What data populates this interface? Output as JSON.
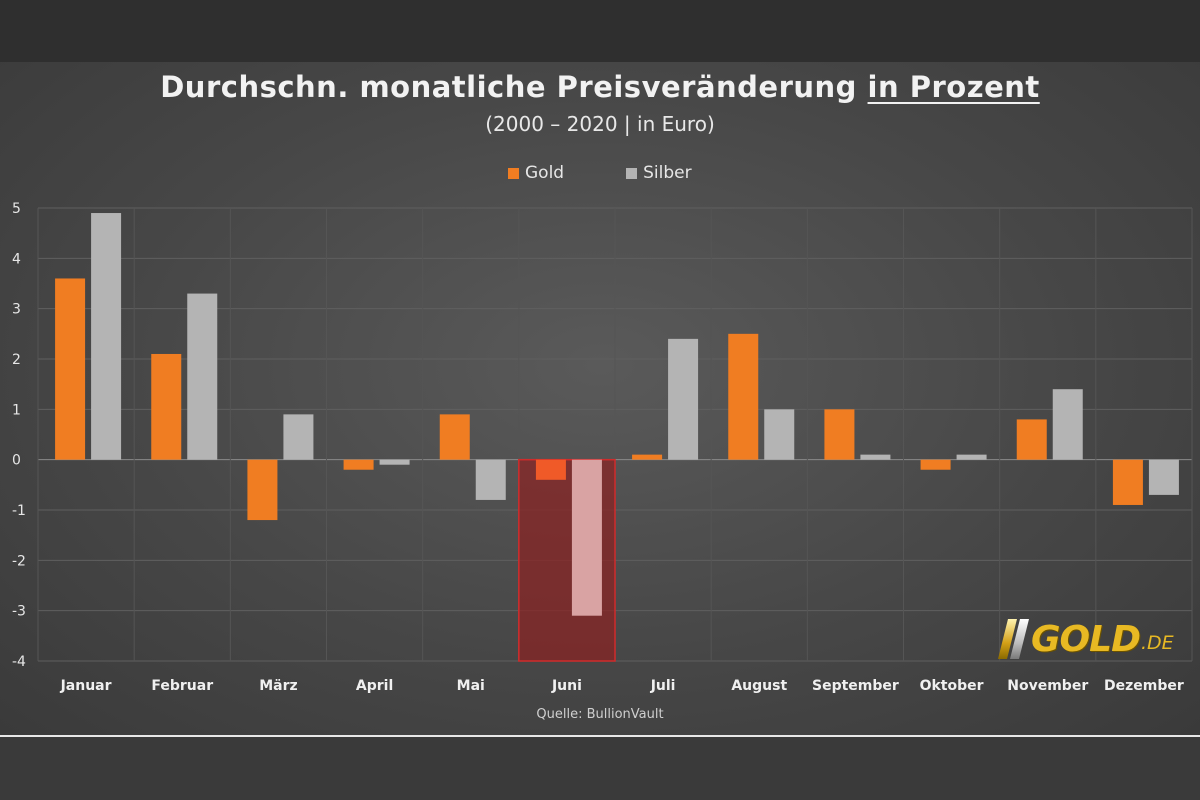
{
  "chart_data": {
    "type": "bar",
    "title_main": "Durchschn. monatliche Preisveränderung ",
    "title_underlined": "in Prozent",
    "subtitle": "(2000 – 2020 | in Euro)",
    "categories": [
      "Januar",
      "Februar",
      "März",
      "April",
      "Mai",
      "Juni",
      "Juli",
      "August",
      "September",
      "Oktober",
      "November",
      "Dezember"
    ],
    "series": [
      {
        "name": "Gold",
        "values": [
          3.6,
          2.1,
          -1.2,
          -0.2,
          0.9,
          -0.4,
          0.1,
          2.5,
          1.0,
          -0.2,
          0.8,
          -0.9
        ]
      },
      {
        "name": "Silber",
        "values": [
          4.9,
          3.3,
          0.9,
          -0.1,
          -0.8,
          -3.1,
          2.4,
          1.0,
          0.1,
          0.1,
          1.4,
          -0.7
        ]
      }
    ],
    "ylim": [
      -4,
      5
    ],
    "yticks": [
      "5",
      "4",
      "3",
      "2",
      "1",
      "0",
      "-1",
      "-2",
      "-3",
      "-4"
    ],
    "grid": true,
    "legend_position": "top-center",
    "highlighted_category": "Juni",
    "source": "Quelle: BullionVault",
    "colors": {
      "gold": "#f07d22",
      "silber": "#b4b4b4",
      "gold_highlight": "#f05a28",
      "silber_highlight": "#d9a3a3",
      "highlight_box": "#8b2323",
      "highlight_border": "#d12b2b"
    }
  },
  "brand": {
    "name": "GOLD",
    "tld": ".DE"
  }
}
